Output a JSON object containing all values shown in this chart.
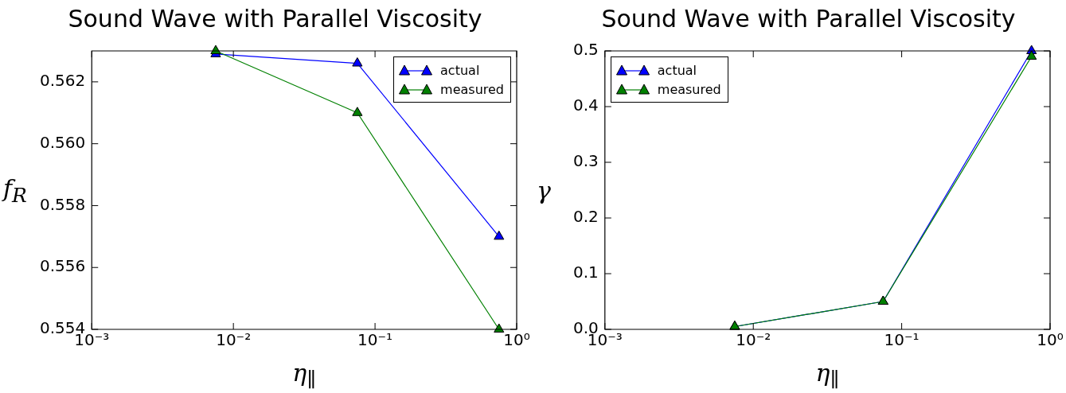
{
  "chart_data": [
    {
      "type": "line",
      "title": "Sound Wave with Parallel Viscosity",
      "xlabel": "η$_{∥}$",
      "ylabel": "f$_{R}$",
      "log": "x",
      "x": [
        0.0075,
        0.075,
        0.75
      ],
      "series": [
        {
          "name": "actual",
          "color": "#0000ff",
          "values": [
            0.5629,
            0.5626,
            0.557
          ]
        },
        {
          "name": "measured",
          "color": "#008000",
          "values": [
            0.563,
            0.561,
            0.554
          ]
        }
      ],
      "xlim": [
        0.001,
        1
      ],
      "xticks": [
        {
          "value": 0.001,
          "label": "10⁻³"
        },
        {
          "value": 0.01,
          "label": "10⁻²"
        },
        {
          "value": 0.1,
          "label": "10⁻¹"
        },
        {
          "value": 1,
          "label": "10⁰"
        }
      ],
      "ylim": [
        0.554,
        0.563
      ],
      "yticks": [
        0.554,
        0.556,
        0.558,
        {
          "value": 0.56,
          "label": "0.560"
        },
        0.562
      ],
      "legend": "top right",
      "marker": "triangle",
      "line_style": "solid"
    },
    {
      "type": "line",
      "title": "Sound Wave with Parallel Viscosity",
      "xlabel": "η$_{∥}$",
      "ylabel": "γ",
      "log": "x",
      "x": [
        0.0075,
        0.075,
        0.75
      ],
      "series": [
        {
          "name": "actual",
          "color": "#0000ff",
          "values": [
            0.005,
            0.05,
            0.5
          ]
        },
        {
          "name": "measured",
          "color": "#008000",
          "values": [
            0.005,
            0.05,
            0.49
          ]
        }
      ],
      "xlim": [
        0.001,
        1
      ],
      "xticks": [
        {
          "value": 0.001,
          "label": "10⁻³"
        },
        {
          "value": 0.01,
          "label": "10⁻²"
        },
        {
          "value": 0.1,
          "label": "10⁻¹"
        },
        {
          "value": 1,
          "label": "10⁰"
        }
      ],
      "ylim": [
        0,
        0.5
      ],
      "yticks": [
        {
          "value": 0,
          "label": "0.0"
        },
        {
          "value": 0.1,
          "label": "0.1"
        },
        {
          "value": 0.2,
          "label": "0.2"
        },
        {
          "value": 0.3,
          "label": "0.3"
        },
        {
          "value": 0.4,
          "label": "0.4"
        },
        {
          "value": 0.5,
          "label": "0.5"
        }
      ],
      "legend": "top left",
      "marker": "triangle",
      "line_style": "solid"
    }
  ]
}
